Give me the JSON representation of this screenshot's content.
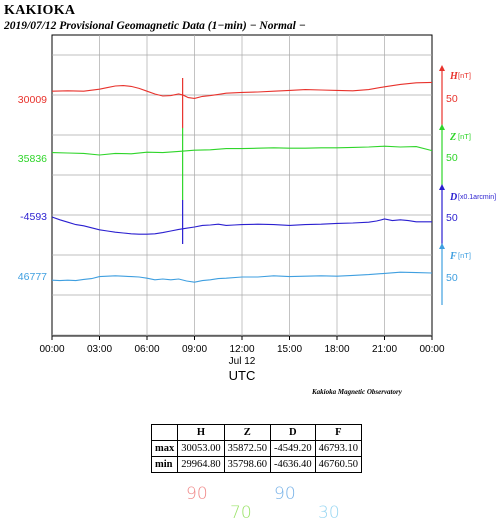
{
  "title": "KAKIOKA",
  "subtitle": "2019/07/12  Provisional Geomagnetic Data (1−min)  − Normal −",
  "credit": "Kakioka Magnetic Observatory",
  "colors": {
    "H": "#e8322c",
    "Z": "#2fd52a",
    "D": "#2a1fd0",
    "F": "#3f9fe0"
  },
  "chart_data": {
    "type": "line",
    "x_ticks": [
      "00:00",
      "03:00",
      "06:00",
      "09:00",
      "12:00",
      "15:00",
      "18:00",
      "21:00",
      "00:00"
    ],
    "x_date_label": "Jul 12",
    "xlabel": "UTC",
    "grid": true,
    "series": [
      {
        "name": "H",
        "unit": "[nT]",
        "baseline_label": "30009",
        "scale_label": "50",
        "color": "#e8322c",
        "x": [
          0,
          1,
          2,
          3,
          3.5,
          4,
          4.5,
          5,
          5.5,
          6,
          6.5,
          7,
          7.5,
          8,
          8.3,
          8.6,
          9,
          9.5,
          10,
          10.5,
          11,
          12,
          13,
          14,
          15,
          16,
          17,
          18,
          19,
          20,
          21,
          22,
          23,
          24
        ],
        "y": [
          30031,
          30032,
          30031,
          30036,
          30040,
          30044,
          30045,
          30043,
          30038,
          30031,
          30024,
          30019,
          30020,
          30024,
          30021,
          30015,
          30013,
          30018,
          30020,
          30023,
          30026,
          30028,
          30029,
          30031,
          30033,
          30035,
          30034,
          30033,
          30032,
          30035,
          30042,
          30048,
          30052,
          30053
        ]
      },
      {
        "name": "Z",
        "unit": "[nT]",
        "baseline_label": "35836",
        "scale_label": "50",
        "color": "#2fd52a",
        "x": [
          0,
          1,
          2,
          3,
          4,
          5,
          6,
          7,
          8,
          9,
          10,
          11,
          12,
          13,
          14,
          15,
          16,
          17,
          18,
          19,
          20,
          21,
          22,
          23,
          24
        ],
        "y": [
          35852,
          35851,
          35850,
          35846,
          35850,
          35849,
          35853,
          35852,
          35855,
          35858,
          35859,
          35862,
          35862,
          35863,
          35864,
          35863,
          35863,
          35864,
          35864,
          35865,
          35866,
          35868,
          35866,
          35867,
          35857
        ]
      },
      {
        "name": "D",
        "unit": "[x0.1arcmin]",
        "baseline_label": "-4593",
        "scale_label": "50",
        "color": "#2a1fd0",
        "x": [
          0,
          0.5,
          1,
          1.5,
          2,
          2.5,
          3,
          3.5,
          4,
          4.5,
          5,
          5.5,
          6,
          6.5,
          7,
          7.5,
          8,
          8.5,
          9,
          9.5,
          10,
          10.5,
          11,
          11.5,
          12,
          13,
          14,
          15,
          16,
          17,
          18,
          19,
          20,
          20.5,
          21,
          21.5,
          22,
          22.5,
          23,
          24
        ],
        "y": [
          -4593,
          -4600,
          -4606,
          -4612,
          -4615,
          -4620,
          -4625,
          -4628,
          -4631,
          -4633,
          -4635,
          -4636,
          -4636,
          -4635,
          -4632,
          -4628,
          -4624,
          -4621,
          -4618,
          -4614,
          -4613,
          -4611,
          -4614,
          -4613,
          -4612,
          -4611,
          -4612,
          -4614,
          -4612,
          -4611,
          -4609,
          -4608,
          -4606,
          -4603,
          -4598,
          -4602,
          -4600,
          -4602,
          -4605,
          -4605
        ]
      },
      {
        "name": "F",
        "unit": "[nT]",
        "baseline_label": "46777",
        "scale_label": "50",
        "color": "#3f9fe0",
        "x": [
          0,
          0.5,
          1,
          1.5,
          2,
          2.5,
          3,
          3.5,
          4,
          4.5,
          5,
          5.5,
          6,
          6.5,
          7,
          7.5,
          8,
          8.5,
          9,
          9.5,
          10,
          10.5,
          11,
          12,
          13,
          14,
          15,
          16,
          17,
          18,
          19,
          20,
          21,
          22,
          23,
          24
        ],
        "y": [
          46769,
          46768,
          46769,
          46768,
          46771,
          46773,
          46778,
          46779,
          46780,
          46779,
          46778,
          46777,
          46774,
          46770,
          46772,
          46770,
          46772,
          46767,
          46764,
          46768,
          46770,
          46773,
          46774,
          46777,
          46777,
          46780,
          46778,
          46779,
          46780,
          46779,
          46781,
          46783,
          46786,
          46789,
          46788,
          46787
        ]
      }
    ]
  },
  "table": {
    "columns": [
      "",
      "H",
      "Z",
      "D",
      "F"
    ],
    "rows": [
      {
        "label": "max",
        "values": [
          "30053.00",
          "35872.50",
          "-4549.20",
          "46793.10"
        ]
      },
      {
        "label": "min",
        "values": [
          "29964.80",
          "35798.60",
          "-4636.40",
          "46760.50"
        ]
      }
    ]
  },
  "handwritten": [
    {
      "text": "90",
      "color": "#f08a8a"
    },
    {
      "text": "70",
      "color": "#9be36a"
    },
    {
      "text": "90",
      "color": "#79b3e8"
    },
    {
      "text": "30",
      "color": "#9ad7f2"
    }
  ]
}
